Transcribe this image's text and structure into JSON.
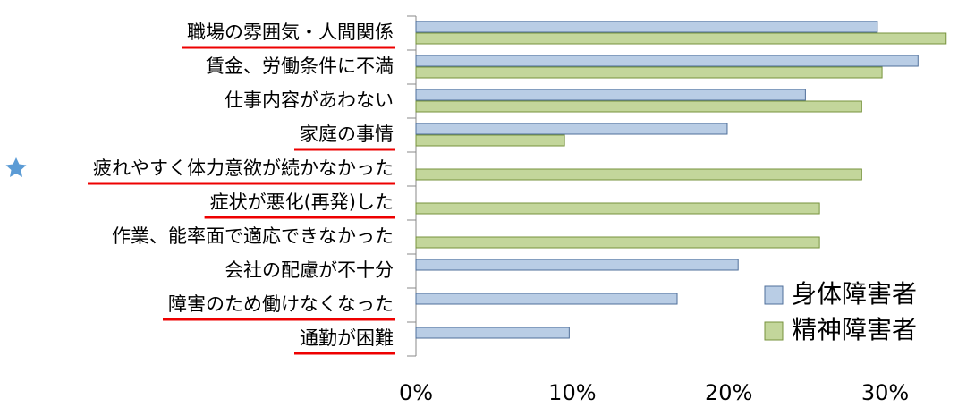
{
  "chart_data": {
    "type": "bar",
    "orientation": "horizontal",
    "categories": [
      "職場の雰囲気・人間関係",
      "賃金、労働条件に不満",
      "仕事内容があわない",
      "家庭の事情",
      "疲れやすく体力意欲が続かなかった",
      "症状が悪化(再発)した",
      "作業、能率面で適応できなかった",
      "会社の配慮が不十分",
      "障害のため働けなくなった",
      "通勤が困難"
    ],
    "underlined": [
      true,
      false,
      false,
      true,
      true,
      true,
      false,
      false,
      true,
      true
    ],
    "series": [
      {
        "name": "身体障害者",
        "color": "#b9cde5",
        "values": [
          29.5,
          32.1,
          24.9,
          19.9,
          null,
          null,
          null,
          20.6,
          16.7,
          9.8
        ]
      },
      {
        "name": "精神障害者",
        "color": "#c3d69b",
        "values": [
          33.9,
          29.8,
          28.5,
          9.5,
          28.5,
          25.8,
          25.8,
          null,
          null,
          null
        ]
      }
    ],
    "xlim": [
      0,
      35
    ],
    "xticks": [
      {
        "value": 0,
        "label": "0%"
      },
      {
        "value": 10,
        "label": "10%"
      },
      {
        "value": 20,
        "label": "20%"
      },
      {
        "value": 30,
        "label": "30%"
      }
    ],
    "legend": "lower right"
  }
}
